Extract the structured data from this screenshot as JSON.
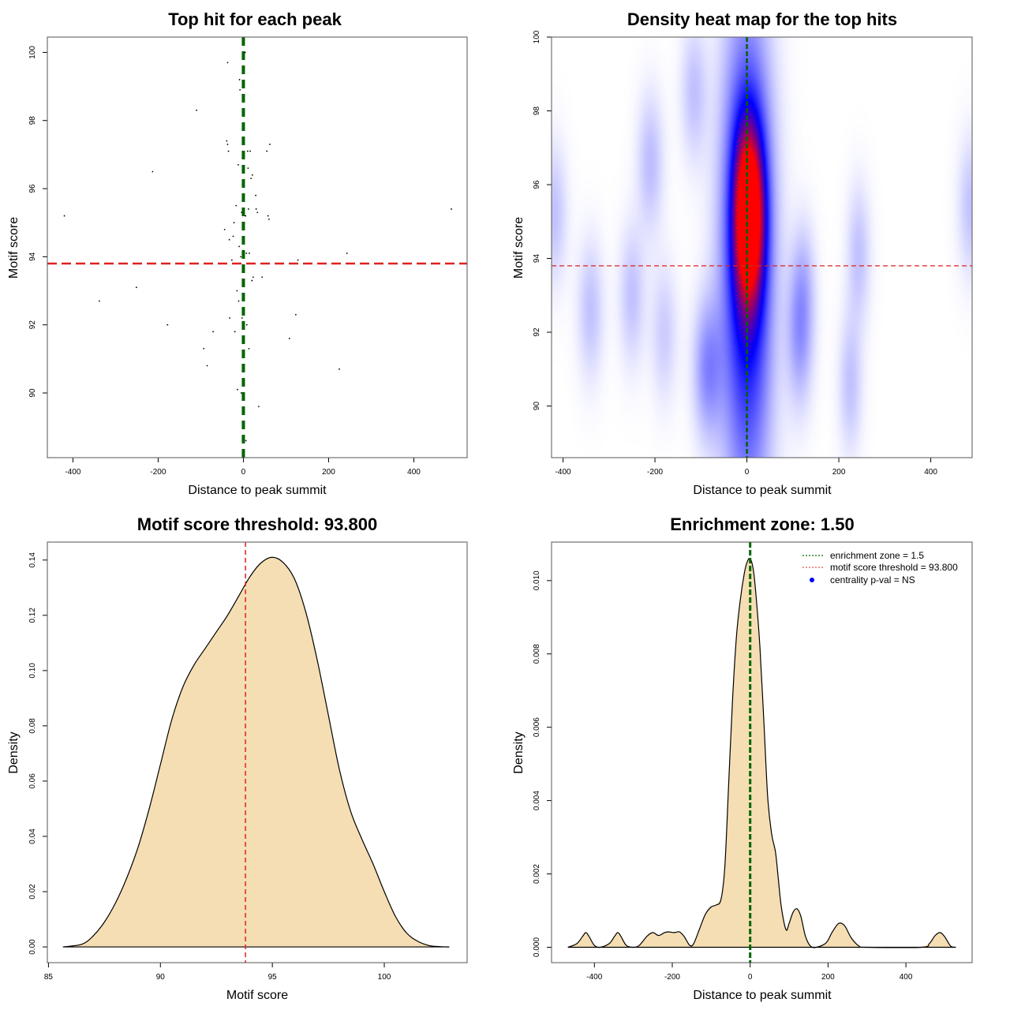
{
  "colors": {
    "enrichment_line": "#006400",
    "threshold_line": "#dd2222",
    "density_fill": "#f5deb3",
    "heat_low": "#ffffff",
    "heat_mid": "#0000ff",
    "heat_high": "#ff0000",
    "legend_dot": "#0000ff"
  },
  "chart_data": [
    {
      "id": "scatter",
      "type": "scatter",
      "title": "Top hit for each peak",
      "xlabel": "Distance to peak summit",
      "ylabel": "Motif score",
      "xlim": [
        -460,
        525
      ],
      "ylim": [
        88.1,
        100.45
      ],
      "xticks": [
        -400,
        -200,
        0,
        200,
        400
      ],
      "yticks": [
        90,
        92,
        94,
        96,
        98,
        100
      ],
      "vline": 0,
      "hline": 93.8,
      "points": [
        [
          -420,
          95.2
        ],
        [
          -338,
          92.7
        ],
        [
          -251,
          93.1
        ],
        [
          -213,
          96.5
        ],
        [
          -178,
          92.0
        ],
        [
          -110,
          98.3
        ],
        [
          -93,
          91.3
        ],
        [
          -85,
          90.8
        ],
        [
          -71,
          91.8
        ],
        [
          -44,
          94.8
        ],
        [
          -39,
          97.4
        ],
        [
          -37,
          97.3
        ],
        [
          -35,
          97.1
        ],
        [
          -37,
          99.7
        ],
        [
          -33,
          94.5
        ],
        [
          -32,
          92.2
        ],
        [
          -27,
          93.9
        ],
        [
          -24,
          94.6
        ],
        [
          -22,
          95.0
        ],
        [
          -20,
          91.8
        ],
        [
          -17,
          95.5
        ],
        [
          -15,
          93.0
        ],
        [
          -14,
          90.1
        ],
        [
          -12,
          96.7
        ],
        [
          -11,
          92.7
        ],
        [
          -10,
          94.3
        ],
        [
          -9,
          99.2
        ],
        [
          -8,
          98.9
        ],
        [
          -6,
          94.0
        ],
        [
          -5,
          90.0
        ],
        [
          -4,
          95.3
        ],
        [
          -3,
          92.2
        ],
        [
          4,
          100.0
        ],
        [
          5,
          95.2
        ],
        [
          6,
          88.6
        ],
        [
          7,
          94.1
        ],
        [
          8,
          92.0
        ],
        [
          10,
          97.1
        ],
        [
          11,
          96.6
        ],
        [
          12,
          95.4
        ],
        [
          13,
          91.3
        ],
        [
          14,
          94.1
        ],
        [
          16,
          97.1
        ],
        [
          18,
          96.3
        ],
        [
          20,
          93.3
        ],
        [
          21,
          96.4
        ],
        [
          23,
          93.4
        ],
        [
          29,
          95.8
        ],
        [
          30,
          95.4
        ],
        [
          33,
          95.3
        ],
        [
          36,
          89.6
        ],
        [
          44,
          93.4
        ],
        [
          55,
          97.1
        ],
        [
          58,
          95.2
        ],
        [
          60,
          95.1
        ],
        [
          62,
          97.3
        ],
        [
          108,
          91.6
        ],
        [
          123,
          92.3
        ],
        [
          128,
          93.9
        ],
        [
          225,
          90.7
        ],
        [
          243,
          94.1
        ],
        [
          488,
          95.4
        ]
      ]
    },
    {
      "id": "heatmap",
      "type": "heatmap",
      "title": "Density heat map for the top hits",
      "xlabel": "Distance to peak summit",
      "ylabel": "Motif score",
      "xlim": [
        -425,
        490
      ],
      "ylim": [
        88.6,
        100
      ],
      "xticks": [
        -400,
        -200,
        0,
        200,
        400
      ],
      "yticks": [
        90,
        92,
        94,
        96,
        98,
        100
      ],
      "vline": 0,
      "hline": 93.8,
      "colorscale": [
        "white",
        "blue",
        "red"
      ],
      "blobs": [
        {
          "x": 5,
          "y": 95.2,
          "sx": 22,
          "sy": 1.6,
          "w": 1.0
        },
        {
          "x": 0,
          "y": 94.0,
          "sx": 38,
          "sy": 4.5,
          "w": 0.55
        },
        {
          "x": -85,
          "y": 91.0,
          "sx": 22,
          "sy": 1.3,
          "w": 0.22
        },
        {
          "x": -115,
          "y": 98.5,
          "sx": 20,
          "sy": 1.3,
          "w": 0.12
        },
        {
          "x": -210,
          "y": 96.6,
          "sx": 20,
          "sy": 1.3,
          "w": 0.13
        },
        {
          "x": -250,
          "y": 93.0,
          "sx": 20,
          "sy": 1.3,
          "w": 0.12
        },
        {
          "x": -340,
          "y": 92.6,
          "sx": 20,
          "sy": 1.3,
          "w": 0.12
        },
        {
          "x": -180,
          "y": 92.0,
          "sx": 20,
          "sy": 1.3,
          "w": 0.1
        },
        {
          "x": -420,
          "y": 95.2,
          "sx": 20,
          "sy": 1.3,
          "w": 0.12
        },
        {
          "x": 115,
          "y": 92.0,
          "sx": 20,
          "sy": 1.4,
          "w": 0.2
        },
        {
          "x": 125,
          "y": 93.5,
          "sx": 18,
          "sy": 1.2,
          "w": 0.08
        },
        {
          "x": 225,
          "y": 90.6,
          "sx": 18,
          "sy": 1.3,
          "w": 0.12
        },
        {
          "x": 243,
          "y": 94.1,
          "sx": 18,
          "sy": 1.3,
          "w": 0.12
        },
        {
          "x": 488,
          "y": 95.4,
          "sx": 20,
          "sy": 1.3,
          "w": 0.12
        }
      ]
    },
    {
      "id": "score-density",
      "type": "area",
      "title": "Motif score threshold: 93.800",
      "xlabel": "Motif score",
      "ylabel": "Density",
      "xlim": [
        84.95,
        103.7
      ],
      "ylim": [
        -0.0057,
        0.1465
      ],
      "xticks": [
        85,
        90,
        95,
        100
      ],
      "yticks": [
        0.0,
        0.02,
        0.04,
        0.06,
        0.08,
        0.1,
        0.12,
        0.14
      ],
      "ytick_labels": [
        "0.00",
        "0.02",
        "0.04",
        "0.06",
        "0.08",
        "0.10",
        "0.12",
        "0.14"
      ],
      "vline": 93.8,
      "x": [
        85.65,
        86.5,
        87.0,
        87.5,
        88.0,
        88.5,
        89.0,
        89.5,
        90.0,
        90.5,
        91.0,
        91.5,
        92.0,
        92.5,
        93.0,
        93.5,
        94.0,
        94.5,
        95.0,
        95.5,
        96.0,
        96.5,
        97.0,
        97.5,
        98.0,
        98.5,
        99.0,
        99.5,
        100.0,
        100.5,
        101.0,
        101.5,
        102.0,
        102.5,
        102.9
      ],
      "values": [
        0.0,
        0.001,
        0.004,
        0.009,
        0.016,
        0.025,
        0.036,
        0.05,
        0.066,
        0.082,
        0.094,
        0.102,
        0.108,
        0.114,
        0.12,
        0.127,
        0.134,
        0.139,
        0.141,
        0.139,
        0.133,
        0.121,
        0.104,
        0.084,
        0.064,
        0.049,
        0.039,
        0.03,
        0.02,
        0.011,
        0.005,
        0.002,
        0.0005,
        0.0001,
        0.0
      ]
    },
    {
      "id": "distance-density",
      "type": "area",
      "title": "Enrichment zone: 1.50",
      "xlabel": "Distance to peak summit",
      "ylabel": "Density",
      "xlim": [
        -510,
        570
      ],
      "ylim": [
        -0.00042,
        0.01105
      ],
      "xticks": [
        -400,
        -200,
        0,
        200,
        400
      ],
      "yticks": [
        0.0,
        0.002,
        0.004,
        0.006,
        0.008,
        0.01
      ],
      "ytick_labels": [
        "0.000",
        "0.002",
        "0.004",
        "0.006",
        "0.008",
        "0.010"
      ],
      "vline": 0,
      "x": [
        -468,
        -445,
        -430,
        -422,
        -414,
        -400,
        -385,
        -362,
        -348,
        -340,
        -332,
        -318,
        -300,
        -285,
        -265,
        -250,
        -235,
        -220,
        -210,
        -195,
        -182,
        -170,
        -155,
        -145,
        -130,
        -115,
        -100,
        -88,
        -75,
        -65,
        -55,
        -45,
        -35,
        -25,
        -15,
        -8,
        0,
        8,
        15,
        25,
        35,
        45,
        55,
        65,
        72,
        80,
        92,
        100,
        110,
        120,
        130,
        142,
        155,
        170,
        195,
        210,
        225,
        235,
        245,
        260,
        280,
        300,
        440,
        460,
        475,
        488,
        500,
        515,
        528
      ],
      "values": [
        0.0,
        0.0001,
        0.0003,
        0.0004,
        0.0003,
        5e-05,
        0.0,
        0.0001,
        0.0003,
        0.0004,
        0.0003,
        5e-05,
        0.0,
        5e-05,
        0.0003,
        0.0004,
        0.00032,
        0.0004,
        0.00042,
        0.0004,
        0.00042,
        0.0003,
        5e-05,
        0.0001,
        0.0005,
        0.0009,
        0.0011,
        0.00115,
        0.0013,
        0.0022,
        0.0045,
        0.0068,
        0.0085,
        0.0095,
        0.0102,
        0.0105,
        0.0106,
        0.0103,
        0.0096,
        0.0082,
        0.0062,
        0.0041,
        0.0031,
        0.0026,
        0.0019,
        0.0011,
        0.00048,
        0.00065,
        0.00095,
        0.00105,
        0.00085,
        0.0003,
        3e-05,
        0.0,
        0.00012,
        0.0004,
        0.00063,
        0.00065,
        0.00055,
        0.00025,
        3e-05,
        0.0,
        0.0,
        0.0001,
        0.00032,
        0.0004,
        0.00028,
        3e-05,
        0.0
      ]
    }
  ],
  "legend": {
    "items": [
      {
        "label": "enrichment zone = 1.5",
        "style": "dotted-green"
      },
      {
        "label": "motif score threshold = 93.800",
        "style": "dotted-red"
      },
      {
        "label": "centrality p-val = NS",
        "style": "blue-dot"
      }
    ]
  }
}
